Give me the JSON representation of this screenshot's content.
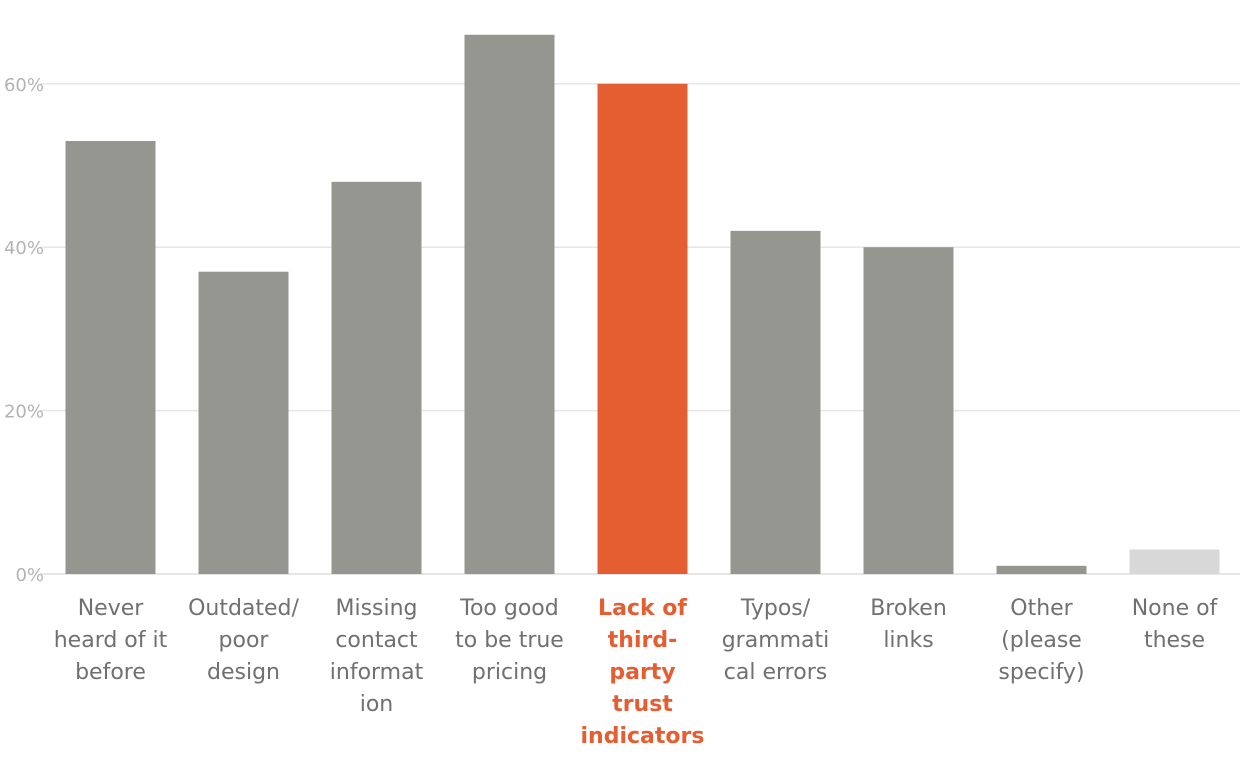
{
  "chart_data": {
    "type": "bar",
    "title": "",
    "xlabel": "",
    "ylabel": "",
    "ylim": [
      0,
      70
    ],
    "yticks": [
      0,
      20,
      40,
      60
    ],
    "ytick_labels": [
      "0%",
      "20%",
      "40%",
      "60%"
    ],
    "grid": true,
    "legend": "none",
    "categories": [
      "Never heard of it before",
      "Outdated/ poor design",
      "Missing contact information",
      "Too good to be true pricing",
      "Lack of third-party trust indicators",
      "Typos/ grammatical errors",
      "Broken links",
      "Other (please specify)",
      "None of these"
    ],
    "category_label_lines": [
      [
        "Never",
        "heard of it",
        "before"
      ],
      [
        "Outdated/",
        "poor",
        "design"
      ],
      [
        "Missing",
        "contact",
        "informat",
        "ion"
      ],
      [
        "Too good",
        "to be true",
        "pricing"
      ],
      [
        "Lack of",
        "third-",
        "party",
        "trust",
        "indicators"
      ],
      [
        "Typos/",
        "grammati",
        "cal errors"
      ],
      [
        "Broken",
        "links"
      ],
      [
        "Other",
        "(please",
        "specify)"
      ],
      [
        "None of",
        "these"
      ]
    ],
    "values": [
      53,
      37,
      48,
      66,
      60,
      42,
      40,
      1,
      3
    ],
    "highlight_index": 4,
    "colors": {
      "default": "#95968f",
      "highlight": "#e55e32",
      "muted": "#d8d8d8",
      "grid": "#e6e6e6",
      "tick": "#b3b3b3",
      "label": "#707070"
    },
    "bar_colors": [
      "default",
      "default",
      "default",
      "default",
      "highlight",
      "default",
      "default",
      "default",
      "muted"
    ]
  }
}
